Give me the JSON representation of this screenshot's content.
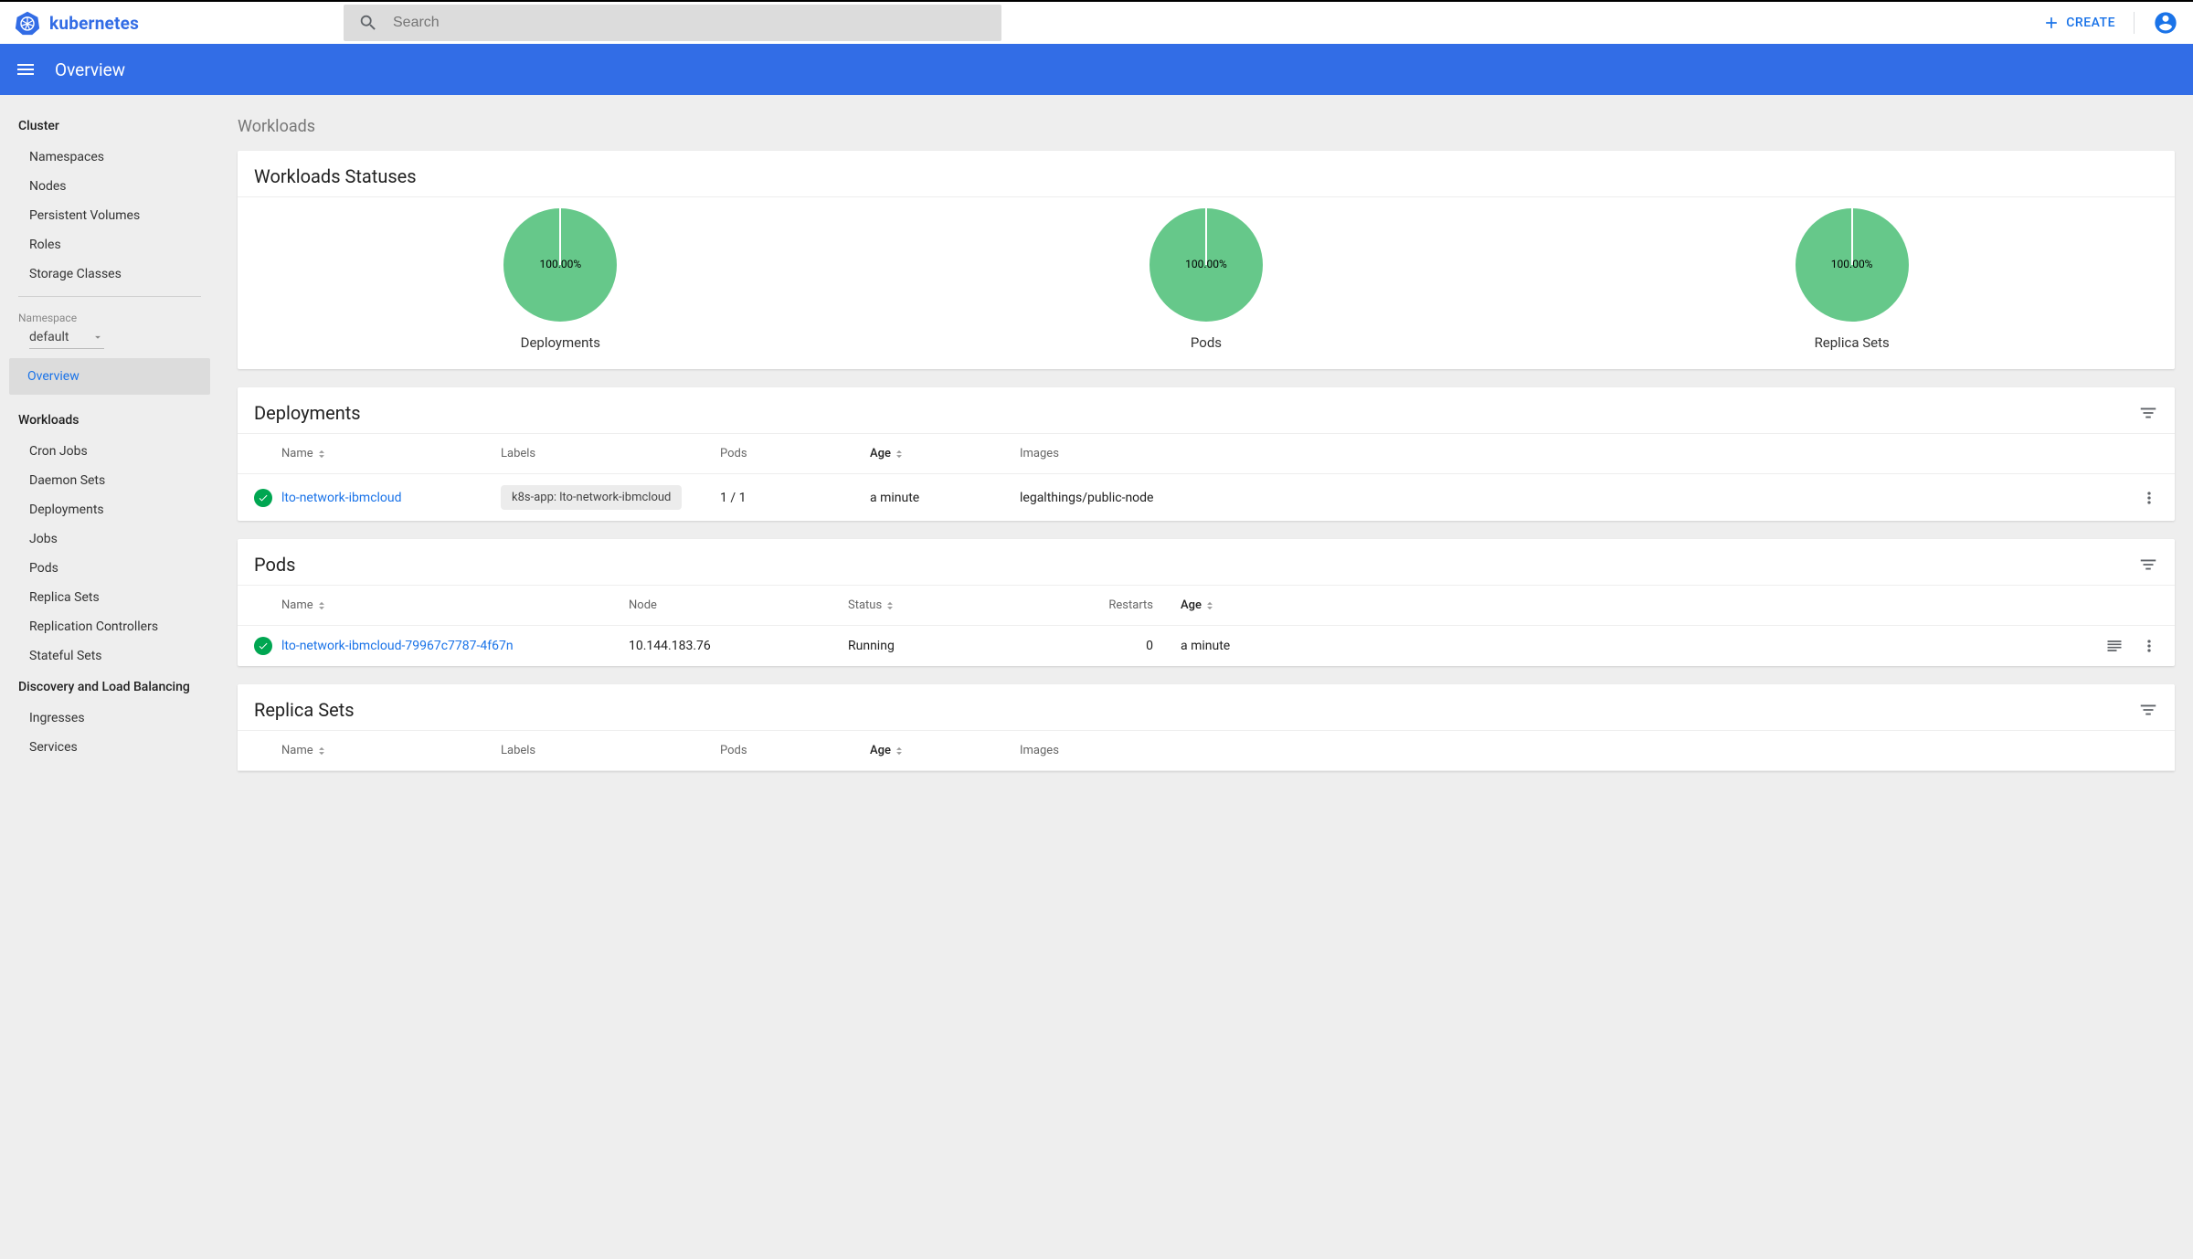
{
  "topbar": {
    "logo_text": "kubernetes",
    "search_placeholder": "Search",
    "create_label": "CREATE"
  },
  "bluebar": {
    "title": "Overview"
  },
  "sidebar": {
    "cluster_title": "Cluster",
    "cluster_items": [
      "Namespaces",
      "Nodes",
      "Persistent Volumes",
      "Roles",
      "Storage Classes"
    ],
    "namespace_label": "Namespace",
    "namespace_value": "default",
    "overview_label": "Overview",
    "workloads_title": "Workloads",
    "workloads_items": [
      "Cron Jobs",
      "Daemon Sets",
      "Deployments",
      "Jobs",
      "Pods",
      "Replica Sets",
      "Replication Controllers",
      "Stateful Sets"
    ],
    "discovery_title": "Discovery and Load Balancing",
    "discovery_items": [
      "Ingresses",
      "Services"
    ]
  },
  "main": {
    "breadcrumb": "Workloads",
    "statuses": {
      "title": "Workloads Statuses",
      "donuts": [
        {
          "label": "Deployments",
          "pct": "100.00%",
          "color": "#66c88a"
        },
        {
          "label": "Pods",
          "pct": "100.00%",
          "color": "#66c88a"
        },
        {
          "label": "Replica Sets",
          "pct": "100.00%",
          "color": "#66c88a"
        }
      ]
    },
    "deployments": {
      "title": "Deployments",
      "headers": {
        "name": "Name",
        "labels": "Labels",
        "pods": "Pods",
        "age": "Age",
        "images": "Images"
      },
      "rows": [
        {
          "status_color": "#00a651",
          "name": "lto-network-ibmcloud",
          "label_chip": "k8s-app: lto-network-ibmcloud",
          "pods": "1 / 1",
          "age": "a minute",
          "images": "legalthings/public-node"
        }
      ]
    },
    "pods": {
      "title": "Pods",
      "headers": {
        "name": "Name",
        "node": "Node",
        "status": "Status",
        "restarts": "Restarts",
        "age": "Age"
      },
      "rows": [
        {
          "status_color": "#00a651",
          "name": "lto-network-ibmcloud-79967c7787-4f67n",
          "node": "10.144.183.76",
          "status": "Running",
          "restarts": "0",
          "age": "a minute"
        }
      ]
    },
    "replicasets": {
      "title": "Replica Sets",
      "headers": {
        "name": "Name",
        "labels": "Labels",
        "pods": "Pods",
        "age": "Age",
        "images": "Images"
      }
    }
  },
  "colors": {
    "brand_blue": "#326ce5",
    "action_blue": "#1a73e8",
    "bg_grey": "#eeeeee",
    "donut_green": "#66c88a",
    "status_green": "#00a651"
  }
}
